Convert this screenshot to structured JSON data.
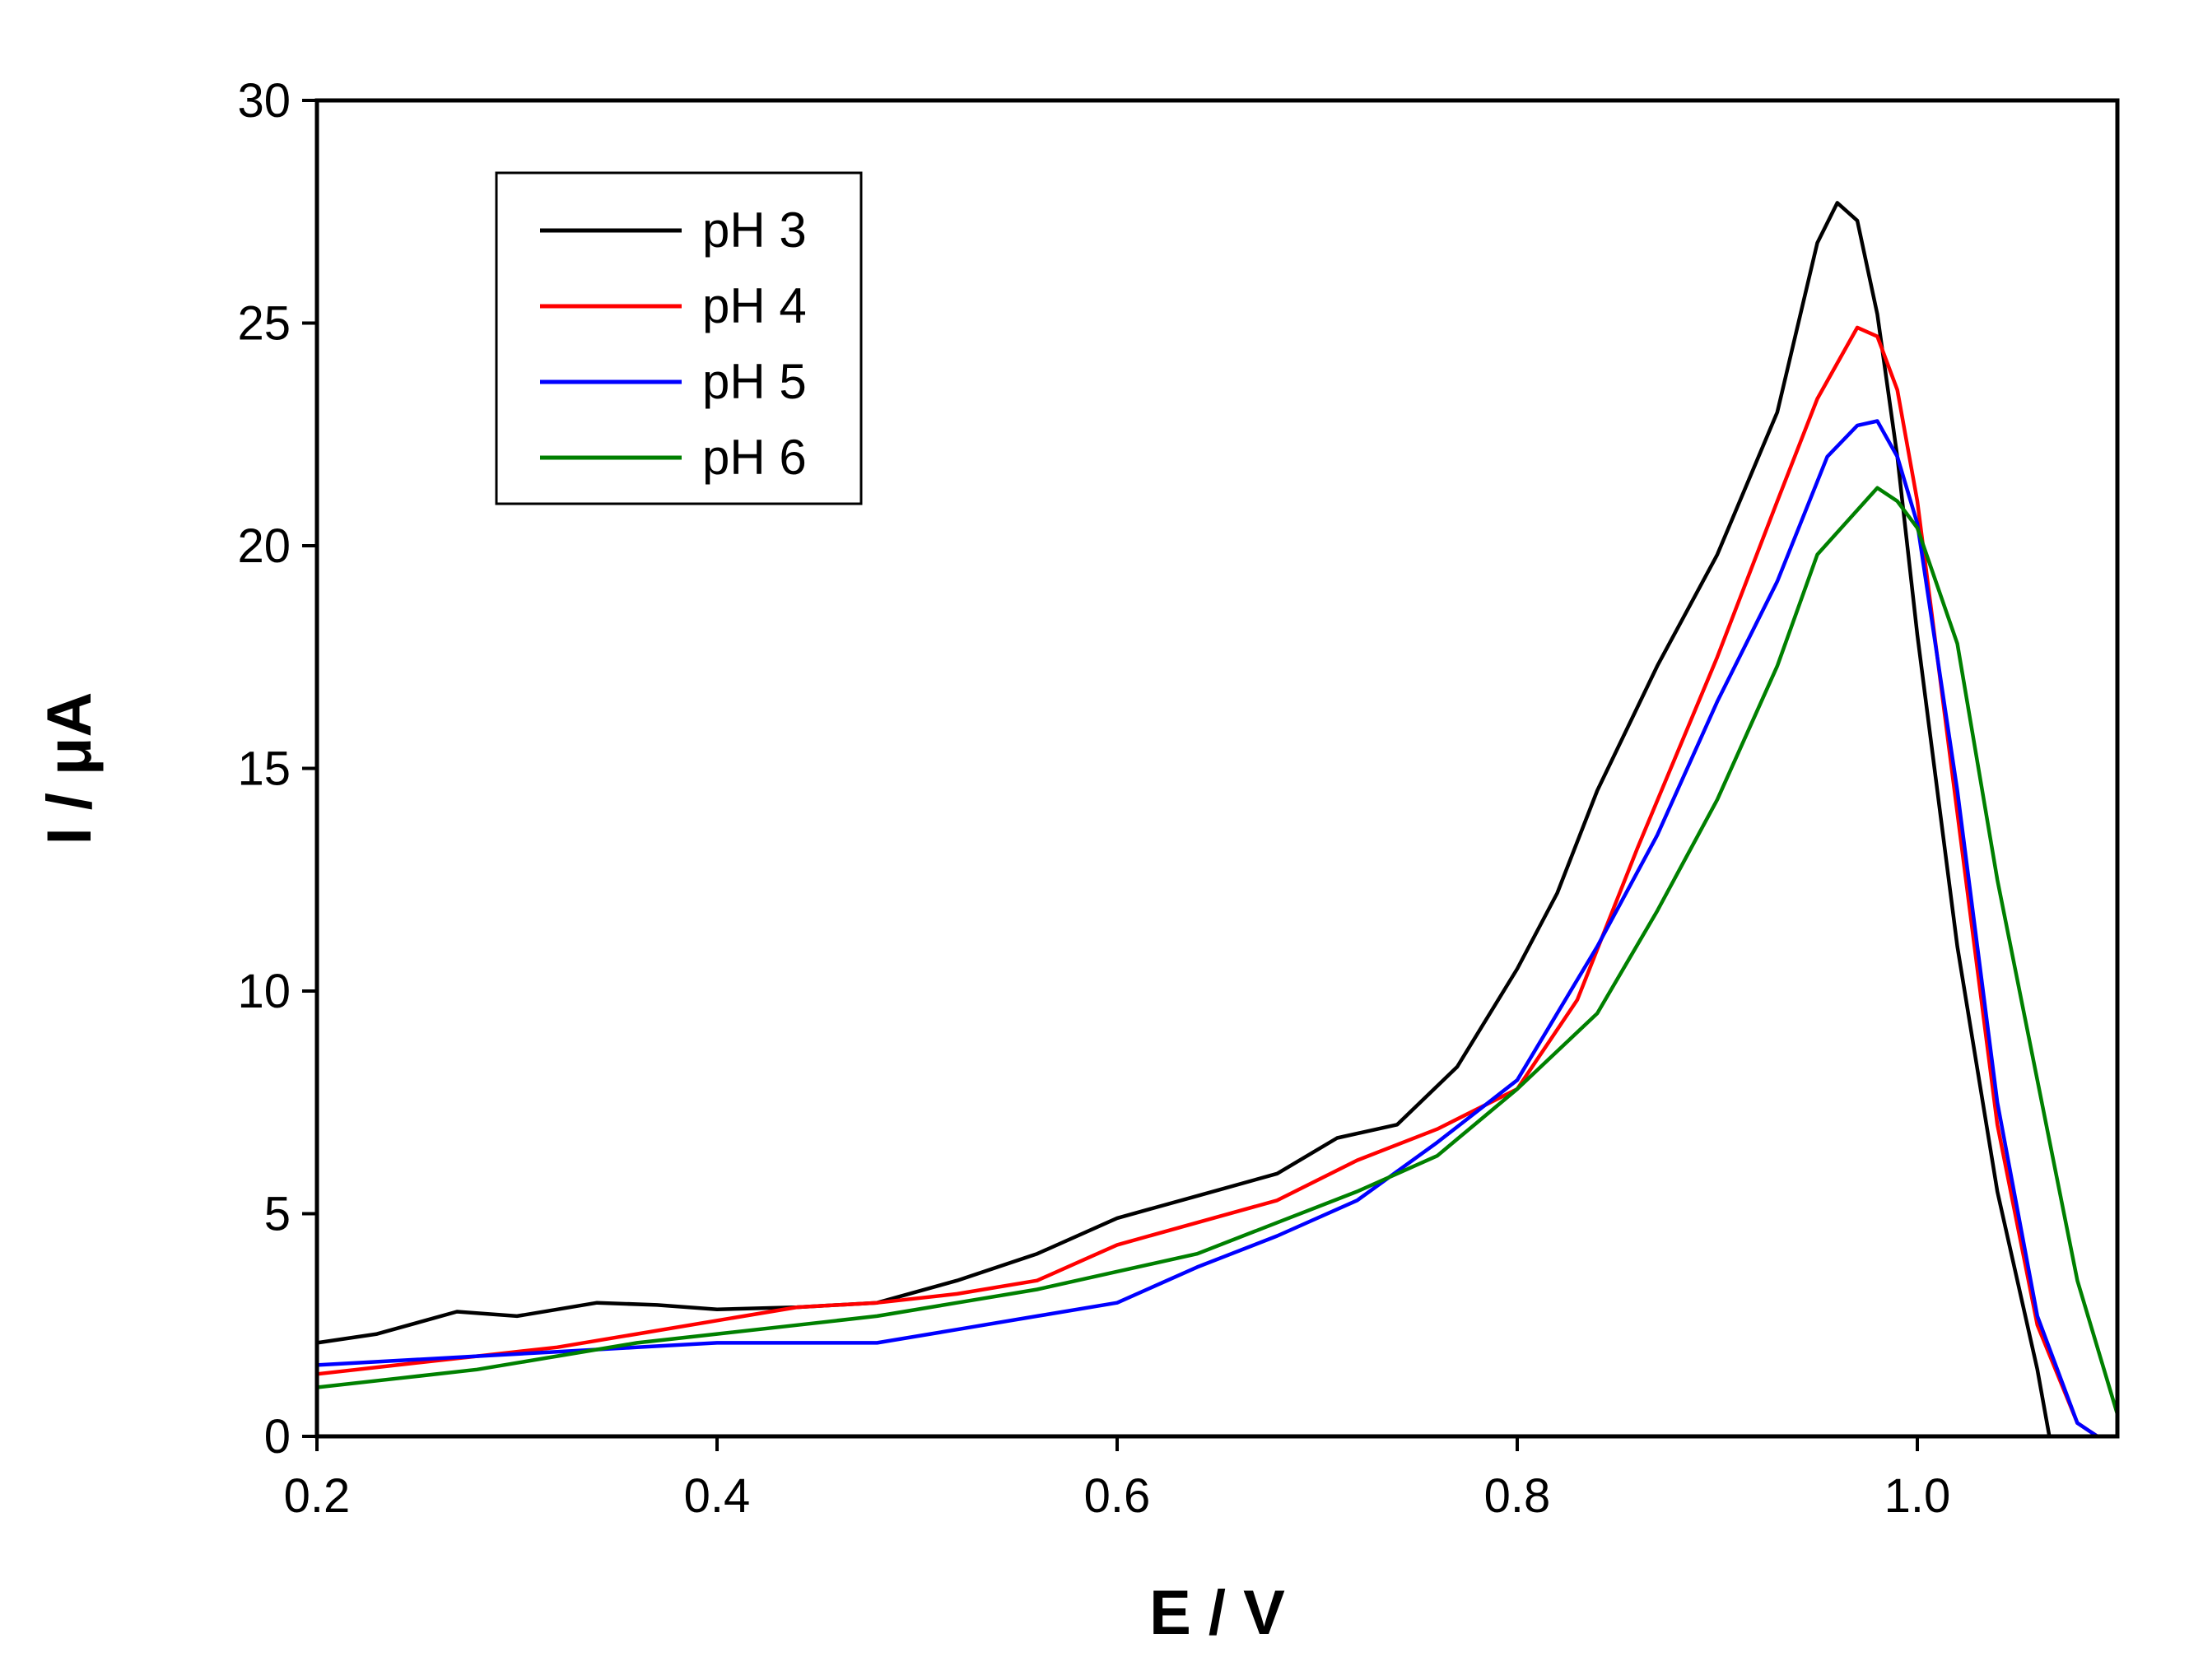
{
  "chart_data": {
    "type": "line",
    "title": "",
    "xlabel": "E / V",
    "ylabel": "I / μA",
    "xlim": [
      0.2,
      1.1
    ],
    "ylim": [
      0,
      30
    ],
    "xticks": [
      0.2,
      0.4,
      0.6,
      0.8,
      1.0
    ],
    "xtick_labels": [
      "0.2",
      "0.4",
      "0.6",
      "0.8",
      "1.0"
    ],
    "yticks": [
      0,
      5,
      10,
      15,
      20,
      25,
      30
    ],
    "ytick_labels": [
      "0",
      "5",
      "10",
      "15",
      "20",
      "25",
      "30"
    ],
    "grid": false,
    "legend_position": "top-left",
    "series": [
      {
        "name": "pH 3",
        "color": "#000000",
        "x": [
          0.2,
          0.23,
          0.27,
          0.3,
          0.34,
          0.37,
          0.4,
          0.44,
          0.48,
          0.52,
          0.56,
          0.6,
          0.64,
          0.68,
          0.71,
          0.74,
          0.77,
          0.8,
          0.82,
          0.84,
          0.87,
          0.9,
          0.93,
          0.95,
          0.96,
          0.97,
          0.98,
          0.99,
          1.0,
          1.02,
          1.04,
          1.06,
          1.066
        ],
        "y": [
          2.1,
          2.3,
          2.8,
          2.7,
          3.0,
          2.95,
          2.85,
          2.9,
          3.0,
          3.5,
          4.1,
          4.9,
          5.4,
          5.9,
          6.7,
          7.0,
          8.3,
          10.5,
          12.2,
          14.5,
          17.3,
          19.8,
          23.0,
          26.8,
          27.7,
          27.3,
          25.2,
          22.0,
          18.0,
          11.0,
          5.5,
          1.5,
          0.0
        ]
      },
      {
        "name": "pH 4",
        "color": "#ff0000",
        "x": [
          0.2,
          0.24,
          0.28,
          0.32,
          0.36,
          0.4,
          0.44,
          0.48,
          0.52,
          0.56,
          0.6,
          0.64,
          0.68,
          0.72,
          0.76,
          0.8,
          0.83,
          0.86,
          0.9,
          0.93,
          0.95,
          0.97,
          0.98,
          0.99,
          1.0,
          1.02,
          1.04,
          1.06,
          1.08,
          1.09
        ],
        "y": [
          1.4,
          1.6,
          1.8,
          2.0,
          2.3,
          2.6,
          2.9,
          3.0,
          3.2,
          3.5,
          4.3,
          4.8,
          5.3,
          6.2,
          6.9,
          7.8,
          9.8,
          13.2,
          17.5,
          21.0,
          23.3,
          24.9,
          24.7,
          23.5,
          21.0,
          14.0,
          7.0,
          2.5,
          0.3,
          0.0
        ]
      },
      {
        "name": "pH 5",
        "color": "#0000ff",
        "x": [
          0.2,
          0.24,
          0.28,
          0.32,
          0.36,
          0.4,
          0.44,
          0.48,
          0.52,
          0.56,
          0.6,
          0.64,
          0.68,
          0.72,
          0.76,
          0.8,
          0.84,
          0.87,
          0.9,
          0.93,
          0.955,
          0.97,
          0.98,
          0.99,
          1.0,
          1.02,
          1.04,
          1.06,
          1.08,
          1.09
        ],
        "y": [
          1.6,
          1.7,
          1.8,
          1.9,
          2.0,
          2.1,
          2.1,
          2.1,
          2.4,
          2.7,
          3.0,
          3.8,
          4.5,
          5.3,
          6.6,
          8.0,
          11.0,
          13.5,
          16.5,
          19.2,
          22.0,
          22.7,
          22.8,
          22.0,
          20.5,
          14.5,
          7.5,
          2.7,
          0.3,
          0.0
        ]
      },
      {
        "name": "pH 6",
        "color": "#008000",
        "x": [
          0.2,
          0.24,
          0.28,
          0.32,
          0.36,
          0.4,
          0.44,
          0.48,
          0.52,
          0.56,
          0.6,
          0.64,
          0.68,
          0.72,
          0.76,
          0.8,
          0.84,
          0.87,
          0.9,
          0.93,
          0.95,
          0.97,
          0.98,
          0.99,
          1.0,
          1.02,
          1.04,
          1.06,
          1.08,
          1.1
        ],
        "y": [
          1.1,
          1.3,
          1.5,
          1.8,
          2.1,
          2.3,
          2.5,
          2.7,
          3.0,
          3.3,
          3.7,
          4.1,
          4.8,
          5.5,
          6.3,
          7.8,
          9.5,
          11.8,
          14.3,
          17.3,
          19.8,
          20.8,
          21.3,
          21.0,
          20.4,
          17.8,
          12.5,
          8.0,
          3.5,
          0.5
        ]
      }
    ]
  }
}
